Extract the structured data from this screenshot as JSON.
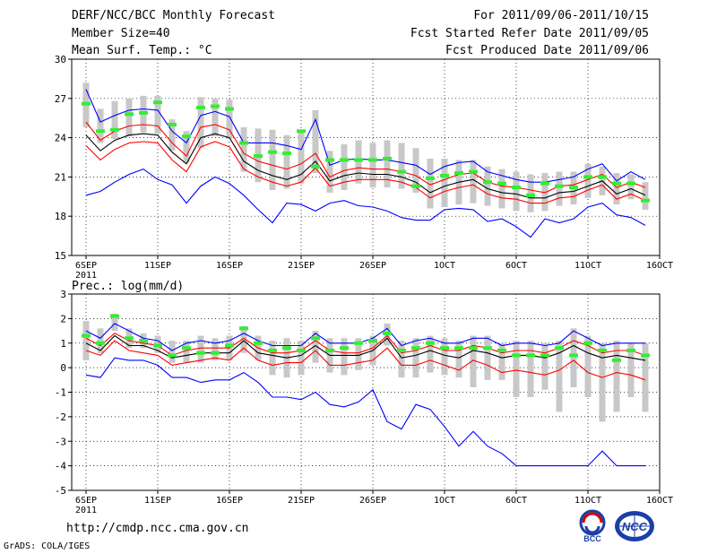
{
  "header": {
    "title": "DERF/NCC/BCC Monthly Forecast",
    "members": "Member Size=40",
    "variable": "Mean Surf. Temp.: °C",
    "period": "For 2011/09/06-2011/10/15",
    "started": "Fcst Started Refer Date 2011/09/05",
    "produced": "Fcst Produced Date 2011/09/06"
  },
  "footer": {
    "url": "http://cmdp.ncc.cma.gov.cn",
    "grads": "GrADS: COLA/IGES",
    "logo_left": "BCC",
    "logo_right": "NCC"
  },
  "colors": {
    "bound": "#0000ff",
    "spread": "#ff0000",
    "mean": "#000000",
    "box": "#c8c8c8",
    "marker": "#33ee33"
  },
  "chart_data": [
    {
      "type": "line",
      "title": "Mean Surf. Temp.: °C",
      "x_days": [
        0,
        1,
        2,
        3,
        4,
        5,
        6,
        7,
        8,
        9,
        10,
        11,
        12,
        13,
        14,
        15,
        16,
        17,
        18,
        19,
        20,
        21,
        22,
        23,
        24,
        25,
        26,
        27,
        28,
        29,
        30,
        31,
        32,
        33,
        34,
        35,
        36,
        37,
        38,
        39
      ],
      "x_ticks": [
        {
          "day": 0,
          "label": "6SEP"
        },
        {
          "day": 5,
          "label": "11SEP"
        },
        {
          "day": 10,
          "label": "16SEP"
        },
        {
          "day": 15,
          "label": "21SEP"
        },
        {
          "day": 20,
          "label": "26SEP"
        },
        {
          "day": 25,
          "label": "1OCT"
        },
        {
          "day": 30,
          "label": "6OCT"
        },
        {
          "day": 35,
          "label": "11OCT"
        },
        {
          "day": 40,
          "label": "16OCT"
        }
      ],
      "year_label": "2011",
      "ylim": [
        15,
        30
      ],
      "y_ticks": [
        15,
        18,
        21,
        24,
        27,
        30
      ],
      "series": [
        {
          "name": "max",
          "color": "#0000ff",
          "values": [
            27.7,
            25.2,
            25.7,
            26.1,
            26.2,
            26.1,
            24.5,
            23.6,
            25.7,
            26.0,
            25.6,
            23.6,
            23.6,
            23.6,
            23.4,
            23.1,
            25.4,
            21.9,
            22.3,
            22.4,
            22.3,
            22.3,
            22.1,
            21.9,
            21.2,
            21.8,
            22.1,
            22.2,
            21.4,
            21.1,
            20.8,
            20.6,
            20.6,
            20.8,
            21.0,
            21.6,
            22.0,
            20.7,
            21.4,
            20.8
          ]
        },
        {
          "name": "upper",
          "color": "#ff0000",
          "values": [
            25.2,
            23.8,
            24.5,
            24.9,
            25.0,
            24.9,
            23.6,
            22.6,
            24.8,
            25.0,
            24.6,
            22.8,
            22.2,
            21.9,
            21.6,
            22.0,
            22.8,
            21.0,
            21.5,
            21.7,
            21.6,
            21.6,
            21.4,
            21.1,
            20.4,
            20.8,
            21.2,
            21.3,
            20.6,
            20.3,
            20.2,
            20.0,
            19.8,
            20.3,
            20.4,
            20.8,
            21.2,
            20.2,
            20.6,
            20.2
          ]
        },
        {
          "name": "mean",
          "color": "#000000",
          "values": [
            24.2,
            23.0,
            23.8,
            24.2,
            24.3,
            24.2,
            22.9,
            22.0,
            24.0,
            24.3,
            24.0,
            22.2,
            21.5,
            21.1,
            20.8,
            21.2,
            22.2,
            20.7,
            21.1,
            21.3,
            21.2,
            21.2,
            21.0,
            20.6,
            19.8,
            20.3,
            20.6,
            20.8,
            20.1,
            19.8,
            19.7,
            19.4,
            19.4,
            19.8,
            19.9,
            20.3,
            20.7,
            19.7,
            20.1,
            19.6
          ]
        },
        {
          "name": "lower",
          "color": "#ff0000",
          "values": [
            23.4,
            22.3,
            23.1,
            23.6,
            23.7,
            23.6,
            22.3,
            21.4,
            23.3,
            23.7,
            23.3,
            21.6,
            21.0,
            20.6,
            20.3,
            20.6,
            21.7,
            20.3,
            20.6,
            20.8,
            20.8,
            20.8,
            20.6,
            20.2,
            19.4,
            19.9,
            20.2,
            20.4,
            19.7,
            19.4,
            19.3,
            19.0,
            19.0,
            19.4,
            19.5,
            20.0,
            20.4,
            19.3,
            19.7,
            19.2
          ]
        },
        {
          "name": "min",
          "color": "#0000ff",
          "values": [
            19.6,
            19.9,
            20.6,
            21.2,
            21.6,
            20.8,
            20.4,
            19.0,
            20.3,
            21.0,
            20.5,
            19.6,
            18.5,
            17.5,
            19.0,
            18.9,
            18.4,
            19.0,
            19.2,
            18.8,
            18.7,
            18.4,
            17.9,
            17.7,
            17.7,
            18.5,
            18.6,
            18.5,
            17.6,
            17.8,
            17.2,
            16.4,
            17.8,
            17.5,
            17.8,
            18.7,
            19.0,
            18.1,
            17.9,
            17.3
          ]
        }
      ],
      "boxes": {
        "low": [
          24.8,
          23.6,
          23.9,
          24.1,
          24.4,
          24.3,
          23.0,
          22.1,
          23.2,
          24.1,
          23.9,
          21.4,
          20.6,
          20.0,
          20.1,
          20.5,
          21.3,
          19.8,
          20.0,
          20.5,
          20.2,
          20.2,
          20.1,
          19.8,
          18.6,
          18.7,
          18.9,
          19.0,
          18.8,
          18.6,
          18.4,
          18.3,
          18.4,
          18.8,
          18.9,
          19.4,
          19.6,
          18.9,
          19.3,
          18.5
        ],
        "high": [
          28.2,
          26.2,
          26.8,
          27.0,
          27.2,
          27.2,
          25.4,
          24.5,
          27.1,
          27.0,
          26.9,
          24.8,
          24.7,
          24.6,
          24.2,
          24.4,
          26.1,
          23.0,
          23.5,
          23.8,
          23.6,
          23.8,
          23.6,
          23.2,
          22.4,
          22.4,
          22.3,
          22.3,
          21.8,
          21.6,
          21.4,
          21.2,
          21.3,
          21.4,
          21.4,
          22.0,
          21.8,
          21.3,
          21.2,
          20.6
        ]
      },
      "markers": [
        26.6,
        24.5,
        24.6,
        25.8,
        25.9,
        26.7,
        25.0,
        24.1,
        26.3,
        26.4,
        26.2,
        23.6,
        22.6,
        22.9,
        22.8,
        24.5,
        21.8,
        22.3,
        22.3,
        22.3,
        22.3,
        22.4,
        21.4,
        20.3,
        20.9,
        21.1,
        21.3,
        21.4,
        20.6,
        20.5,
        20.2,
        19.6,
        20.5,
        20.3,
        20.2,
        21.0,
        21.0,
        20.5,
        20.5,
        19.2
      ]
    },
    {
      "type": "line",
      "title": "Prec.: log(mm/d)",
      "x_days": [
        0,
        1,
        2,
        3,
        4,
        5,
        6,
        7,
        8,
        9,
        10,
        11,
        12,
        13,
        14,
        15,
        16,
        17,
        18,
        19,
        20,
        21,
        22,
        23,
        24,
        25,
        26,
        27,
        28,
        29,
        30,
        31,
        32,
        33,
        34,
        35,
        36,
        37,
        38,
        39
      ],
      "x_ticks": [
        {
          "day": 0,
          "label": "6SEP"
        },
        {
          "day": 5,
          "label": "11SEP"
        },
        {
          "day": 10,
          "label": "16SEP"
        },
        {
          "day": 15,
          "label": "21SEP"
        },
        {
          "day": 20,
          "label": "26SEP"
        },
        {
          "day": 25,
          "label": "1OCT"
        },
        {
          "day": 30,
          "label": "6OCT"
        },
        {
          "day": 35,
          "label": "11OCT"
        },
        {
          "day": 40,
          "label": "16OCT"
        }
      ],
      "year_label": "2011",
      "ylim": [
        -5,
        3
      ],
      "y_ticks": [
        -5,
        -4,
        -3,
        -2,
        -1,
        0,
        1,
        2,
        3
      ],
      "series": [
        {
          "name": "max",
          "color": "#0000ff",
          "values": [
            1.5,
            1.2,
            1.8,
            1.5,
            1.2,
            1.1,
            0.7,
            1.0,
            1.1,
            1.0,
            1.1,
            1.4,
            1.1,
            0.9,
            0.9,
            0.9,
            1.4,
            1.0,
            1.0,
            1.0,
            1.2,
            1.6,
            0.9,
            1.1,
            1.2,
            1.0,
            1.0,
            1.2,
            1.2,
            0.9,
            1.0,
            1.0,
            0.9,
            1.0,
            1.5,
            1.2,
            0.9,
            1.0,
            1.0,
            1.0
          ]
        },
        {
          "name": "upper",
          "color": "#ff0000",
          "values": [
            1.2,
            0.9,
            1.4,
            1.1,
            1.0,
            0.9,
            0.5,
            0.7,
            0.8,
            0.8,
            0.8,
            1.2,
            0.8,
            0.6,
            0.6,
            0.7,
            1.1,
            0.7,
            0.6,
            0.6,
            0.8,
            1.3,
            0.6,
            0.7,
            0.9,
            0.7,
            0.7,
            0.9,
            0.8,
            0.6,
            0.7,
            0.7,
            0.6,
            0.8,
            1.1,
            0.9,
            0.6,
            0.7,
            0.7,
            0.5
          ]
        },
        {
          "name": "mean",
          "color": "#000000",
          "values": [
            1.0,
            0.7,
            1.3,
            0.9,
            0.9,
            0.7,
            0.4,
            0.5,
            0.6,
            0.6,
            0.6,
            1.1,
            0.6,
            0.5,
            0.4,
            0.5,
            0.9,
            0.5,
            0.5,
            0.5,
            0.7,
            1.2,
            0.4,
            0.5,
            0.7,
            0.5,
            0.4,
            0.7,
            0.6,
            0.4,
            0.5,
            0.5,
            0.4,
            0.6,
            0.9,
            0.6,
            0.4,
            0.5,
            0.4,
            0.3
          ]
        },
        {
          "name": "lower",
          "color": "#ff0000",
          "values": [
            0.7,
            0.5,
            1.1,
            0.7,
            0.6,
            0.5,
            0.1,
            0.2,
            0.3,
            0.4,
            0.3,
            0.8,
            0.3,
            0.1,
            0.2,
            0.2,
            0.7,
            0.1,
            0.1,
            0.2,
            0.3,
            0.8,
            0.1,
            0.1,
            0.3,
            0.1,
            -0.1,
            0.3,
            0.1,
            -0.2,
            -0.1,
            -0.2,
            -0.3,
            -0.1,
            0.3,
            -0.2,
            -0.4,
            -0.2,
            -0.3,
            -0.5
          ]
        },
        {
          "name": "min",
          "color": "#0000ff",
          "values": [
            -0.3,
            -0.4,
            0.4,
            0.3,
            0.3,
            0.1,
            -0.4,
            -0.4,
            -0.6,
            -0.5,
            -0.5,
            -0.2,
            -0.6,
            -1.2,
            -1.2,
            -1.3,
            -1.0,
            -1.5,
            -1.6,
            -1.4,
            -0.9,
            -2.2,
            -2.5,
            -1.5,
            -1.7,
            -2.4,
            -3.2,
            -2.6,
            -3.2,
            -3.5,
            -4.0,
            -4.0,
            -4.0,
            -4.0,
            -4.0,
            -4.0,
            -3.4,
            -4.0,
            -4.0,
            -4.0
          ]
        }
      ],
      "boxes": {
        "low": [
          0.3,
          0.6,
          1.5,
          0.8,
          0.8,
          0.6,
          0.2,
          0.2,
          0.2,
          0.3,
          0.3,
          0.6,
          0.3,
          -0.3,
          -0.4,
          -0.3,
          0.2,
          -0.2,
          -0.3,
          -0.1,
          0.1,
          0.9,
          -0.4,
          -0.4,
          -0.2,
          -0.3,
          -0.4,
          -0.8,
          -0.5,
          -0.5,
          -1.2,
          -1.2,
          -0.9,
          -1.8,
          -0.8,
          -1.2,
          -2.2,
          -1.8,
          -1.2,
          -1.8
        ],
        "high": [
          1.9,
          1.6,
          2.2,
          1.6,
          1.4,
          1.3,
          1.1,
          1.1,
          1.3,
          1.2,
          1.3,
          1.7,
          1.3,
          1.1,
          1.2,
          1.1,
          1.5,
          1.2,
          1.2,
          1.2,
          1.3,
          1.8,
          1.1,
          1.2,
          1.3,
          1.2,
          1.1,
          1.3,
          1.3,
          1.0,
          1.1,
          1.1,
          1.0,
          1.1,
          1.6,
          1.3,
          1.0,
          1.1,
          1.0,
          1.0
        ]
      },
      "markers": [
        1.3,
        1.0,
        2.1,
        1.2,
        1.1,
        0.9,
        0.5,
        0.8,
        0.6,
        0.6,
        0.9,
        1.6,
        1.0,
        0.7,
        0.8,
        0.7,
        1.2,
        0.7,
        0.8,
        1.0,
        1.1,
        1.4,
        0.7,
        0.8,
        1.0,
        0.8,
        0.8,
        0.8,
        0.8,
        0.7,
        0.5,
        0.5,
        0.5,
        0.8,
        0.5,
        1.0,
        0.7,
        0.3,
        0.7,
        0.5
      ]
    }
  ]
}
